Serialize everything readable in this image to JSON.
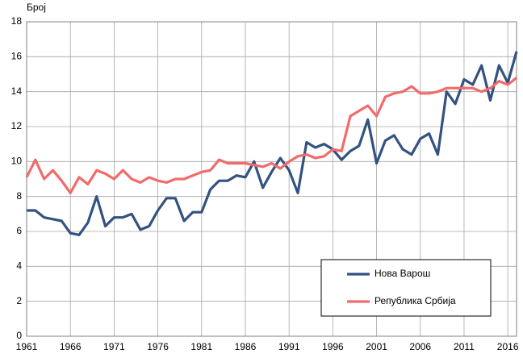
{
  "chart_data": {
    "type": "line",
    "y_label": "Број",
    "x": [
      1961,
      1962,
      1963,
      1964,
      1965,
      1966,
      1967,
      1968,
      1969,
      1970,
      1971,
      1972,
      1973,
      1974,
      1975,
      1976,
      1977,
      1978,
      1979,
      1980,
      1981,
      1982,
      1983,
      1984,
      1985,
      1986,
      1987,
      1988,
      1989,
      1990,
      1991,
      1992,
      1993,
      1994,
      1995,
      1996,
      1997,
      1998,
      1999,
      2000,
      2001,
      2002,
      2003,
      2004,
      2005,
      2006,
      2007,
      2008,
      2009,
      2010,
      2011,
      2012,
      2013,
      2014,
      2015,
      2016,
      2017
    ],
    "series": [
      {
        "name": "Нова Варош",
        "color": "#335280",
        "values": [
          7.2,
          7.2,
          6.8,
          6.7,
          6.6,
          5.9,
          5.8,
          6.5,
          8.0,
          6.3,
          6.8,
          6.8,
          7.0,
          6.1,
          6.3,
          7.2,
          7.9,
          7.9,
          6.6,
          7.1,
          7.1,
          8.4,
          8.9,
          8.9,
          9.2,
          9.1,
          10.0,
          8.5,
          9.4,
          10.2,
          9.5,
          8.2,
          11.1,
          10.8,
          11.0,
          10.7,
          10.1,
          10.6,
          10.9,
          12.4,
          9.9,
          11.2,
          11.5,
          10.7,
          10.4,
          11.3,
          11.6,
          10.4,
          14.0,
          13.3,
          14.7,
          14.4,
          15.5,
          13.5,
          15.5,
          14.5,
          16.3
        ]
      },
      {
        "name": "Република Србија",
        "color": "#f26b6b",
        "values": [
          9.1,
          10.1,
          9.0,
          9.5,
          8.9,
          8.2,
          9.1,
          8.7,
          9.5,
          9.3,
          9.0,
          9.5,
          9.0,
          8.8,
          9.1,
          8.9,
          8.8,
          9.0,
          9.0,
          9.2,
          9.4,
          9.5,
          10.1,
          9.9,
          9.9,
          9.9,
          9.8,
          9.7,
          9.9,
          9.6,
          10.0,
          10.3,
          10.4,
          10.2,
          10.3,
          10.7,
          10.6,
          12.6,
          12.9,
          13.2,
          12.6,
          13.7,
          13.9,
          14.0,
          14.3,
          13.9,
          13.9,
          14.0,
          14.2,
          14.2,
          14.2,
          14.2,
          14.0,
          14.2,
          14.6,
          14.4,
          14.8
        ]
      }
    ],
    "xlim": [
      1961,
      2017
    ],
    "xticks": [
      1961,
      1966,
      1971,
      1976,
      1981,
      1986,
      1991,
      1996,
      2001,
      2006,
      2011,
      2016
    ],
    "ylim": [
      0,
      18
    ],
    "yticks": [
      0,
      2,
      4,
      6,
      8,
      10,
      12,
      14,
      16,
      18
    ],
    "grid": true,
    "legend": "lower right"
  }
}
